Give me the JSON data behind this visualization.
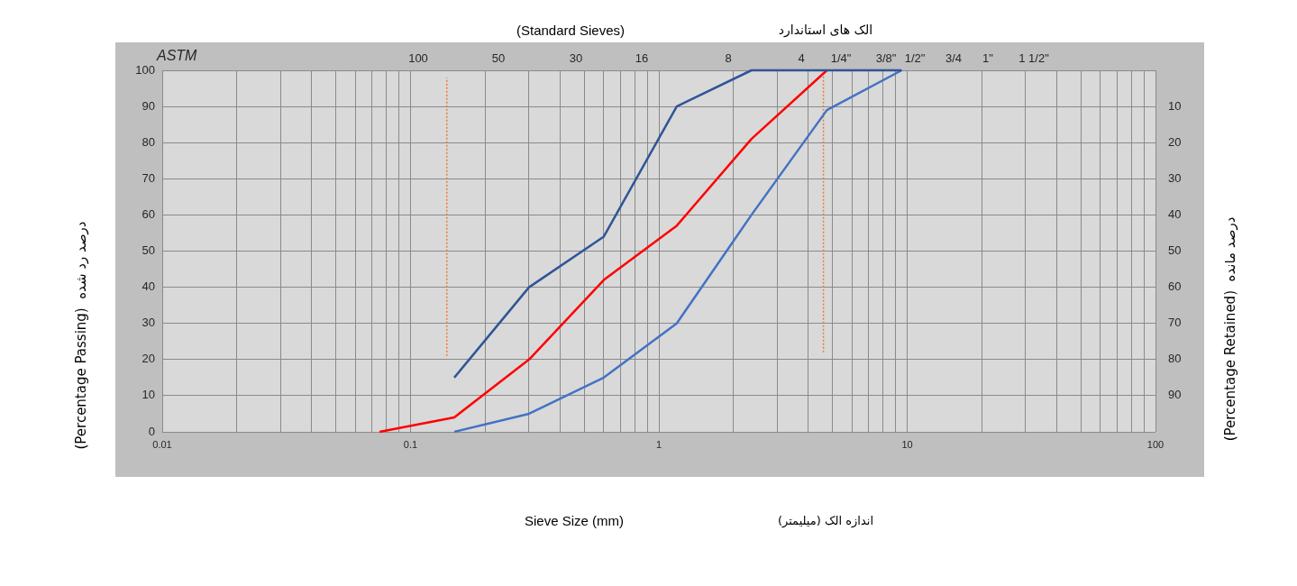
{
  "chart_data": {
    "type": "line",
    "title": "(Standard Sieves)",
    "subtitle": "الک های استاندارد",
    "xlabel": "Sieve Size (mm)",
    "ylabel": "(Percentage Passing)  درصد رد شده",
    "y2label": "(Percentage Retained)  درصد مانده",
    "x2label": "ASTM",
    "annotations": [
      "اندازه الک (میلیمتر)",
      "100",
      "50",
      "30",
      "16",
      "8",
      "4",
      "1/4\"",
      "3/8\"",
      "1/2\"",
      "3/4",
      "1\"",
      "1 1/2\""
    ],
    "log": "x",
    "grid": true,
    "legend": false,
    "marker": "none",
    "xlim": [
      0.01,
      100
    ],
    "xticks": [
      0.01,
      {
        "value": 0.02,
        "label": null
      },
      {
        "value": 0.03,
        "label": null
      },
      {
        "value": 0.04,
        "label": null
      },
      {
        "value": 0.05,
        "label": null
      },
      {
        "value": 0.06,
        "label": null
      },
      {
        "value": 0.07,
        "label": null
      },
      {
        "value": 0.08,
        "label": null
      },
      {
        "value": 0.09,
        "label": null
      },
      0.1,
      {
        "value": 0.2,
        "label": null
      },
      {
        "value": 0.3,
        "label": null
      },
      {
        "value": 0.4,
        "label": null
      },
      {
        "value": 0.5,
        "label": null
      },
      {
        "value": 0.6,
        "label": null
      },
      {
        "value": 0.7,
        "label": null
      },
      {
        "value": 0.8,
        "label": null
      },
      {
        "value": 0.9,
        "label": null
      },
      1,
      {
        "value": 2,
        "label": null
      },
      {
        "value": 3,
        "label": null
      },
      {
        "value": 4,
        "label": null
      },
      {
        "value": 5,
        "label": null
      },
      {
        "value": 6,
        "label": null
      },
      {
        "value": 7,
        "label": null
      },
      {
        "value": 8,
        "label": null
      },
      {
        "value": 9,
        "label": null
      },
      10,
      {
        "value": 20,
        "label": null
      },
      {
        "value": 30,
        "label": null
      },
      {
        "value": 40,
        "label": null
      },
      {
        "value": 50,
        "label": null
      },
      {
        "value": 60,
        "label": null
      },
      {
        "value": 70,
        "label": null
      },
      {
        "value": 80,
        "label": null
      },
      {
        "value": 90,
        "label": null
      },
      100
    ],
    "ylim": [
      0,
      100
    ],
    "yticks": [
      0,
      10,
      20,
      30,
      40,
      50,
      60,
      70,
      80,
      90,
      100
    ],
    "y2lim": [
      100,
      0
    ],
    "y2ticks": [
      10,
      20,
      30,
      40,
      50,
      60,
      70,
      80,
      90
    ],
    "series": [
      {
        "color": "#2f5597",
        "x": [
          0.15,
          0.3,
          0.6,
          1.18,
          2.36,
          4.75,
          9.5
        ],
        "values": [
          15,
          40,
          54,
          90,
          100,
          100,
          100
        ]
      },
      {
        "color": "#ff0000",
        "x": [
          0.075,
          0.15,
          0.3,
          0.6,
          1.18,
          2.36,
          4.75
        ],
        "values": [
          0,
          4,
          20,
          42,
          57,
          81,
          100
        ]
      },
      {
        "color": "#4472c4",
        "x": [
          0.15,
          0.3,
          0.6,
          1.18,
          2.36,
          4.75,
          9.5
        ],
        "values": [
          0,
          5,
          15,
          30,
          60,
          89,
          100
        ]
      },
      {
        "color": "#ed7d31",
        "line_style": "dotted",
        "x": [
          0.14,
          0.14
        ],
        "values": [
          21,
          98
        ]
      },
      {
        "color": "#ed7d31",
        "line_style": "dotted",
        "x": [
          4.6,
          4.6
        ],
        "values": [
          22,
          100
        ]
      }
    ]
  }
}
